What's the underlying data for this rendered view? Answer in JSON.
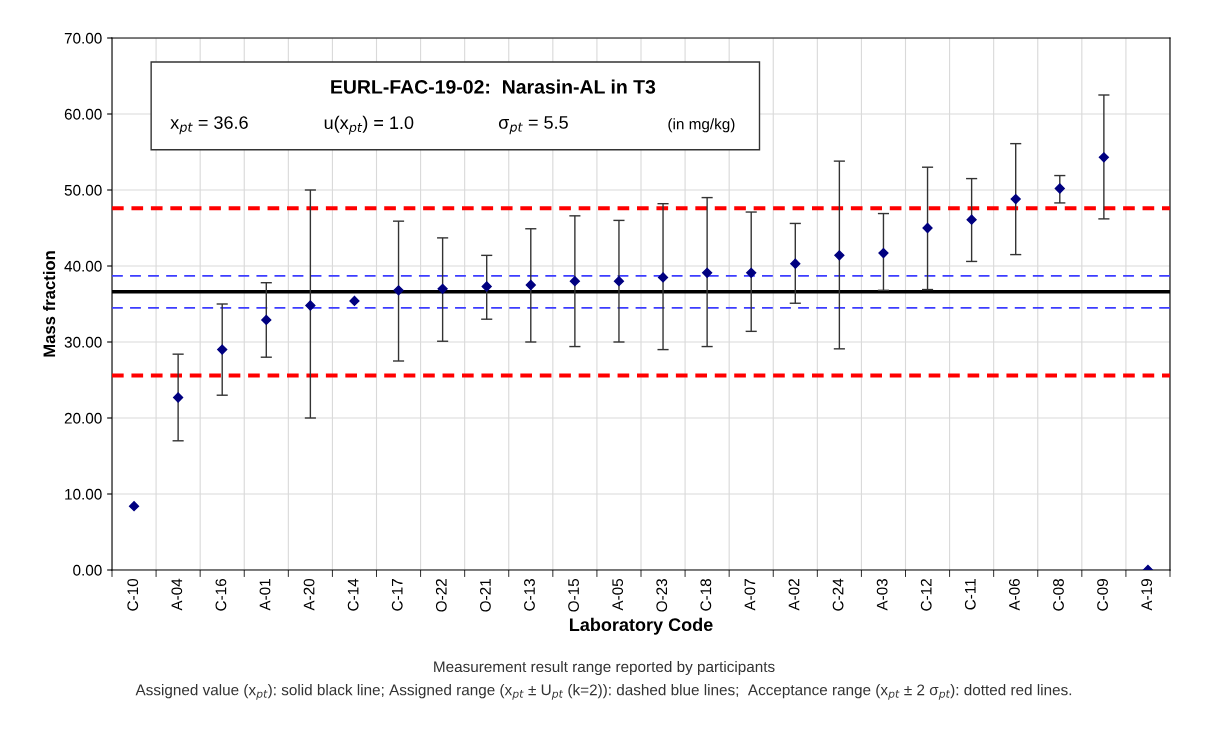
{
  "chart_data": {
    "type": "scatter",
    "title": "EURL-FAC-19-02:  Narasin-AL in T3",
    "xlabel": "Laboratory Code",
    "ylabel": "Mass fraction",
    "categories": [
      "C-10",
      "A-04",
      "C-16",
      "A-01",
      "A-20",
      "C-14",
      "C-17",
      "O-22",
      "O-21",
      "C-13",
      "O-15",
      "A-05",
      "O-23",
      "C-18",
      "A-07",
      "A-02",
      "C-24",
      "A-03",
      "C-12",
      "C-11",
      "A-06",
      "C-08",
      "C-09",
      "A-19"
    ],
    "series": [
      {
        "color": "#000080",
        "values": [
          8.4,
          22.7,
          29.0,
          32.9,
          34.8,
          35.4,
          36.8,
          37.0,
          37.3,
          37.5,
          38.0,
          38.0,
          38.5,
          39.1,
          39.1,
          40.3,
          41.4,
          41.7,
          45.0,
          46.1,
          48.8,
          50.2,
          54.3,
          0.0
        ],
        "errors": [
          null,
          [
            17.0,
            28.4
          ],
          [
            23.0,
            35.0
          ],
          [
            28.0,
            37.8
          ],
          [
            20.0,
            50.0
          ],
          null,
          [
            27.5,
            45.9
          ],
          [
            30.1,
            43.7
          ],
          [
            33.0,
            41.4
          ],
          [
            30.0,
            44.9
          ],
          [
            29.4,
            46.6
          ],
          [
            30.0,
            46.0
          ],
          [
            29.0,
            48.2
          ],
          [
            29.4,
            49.0
          ],
          [
            31.4,
            47.1
          ],
          [
            35.1,
            45.6
          ],
          [
            29.1,
            53.8
          ],
          [
            36.8,
            46.9
          ],
          [
            36.9,
            53.0
          ],
          [
            40.6,
            51.5
          ],
          [
            41.5,
            56.1
          ],
          [
            48.3,
            51.9
          ],
          [
            46.2,
            62.5
          ],
          null
        ]
      }
    ],
    "marker": "diamond",
    "ylim": [
      0,
      70
    ],
    "yticks": [
      {
        "value": 0,
        "label": "0.00"
      },
      {
        "value": 10,
        "label": "10.00"
      },
      {
        "value": 20,
        "label": "20.00"
      },
      {
        "value": 30,
        "label": "30.00"
      },
      {
        "value": 40,
        "label": "40.00"
      },
      {
        "value": 50,
        "label": "50.00"
      },
      {
        "value": 60,
        "label": "60.00"
      },
      {
        "value": 70,
        "label": "70.00"
      }
    ],
    "grid": true,
    "ref_lines": [
      {
        "axis": "y",
        "value": 36.6,
        "color": "#000000",
        "line_style": "solid"
      },
      {
        "axis": "y",
        "value": 34.5,
        "color": "#3d3dff",
        "line_style": "dashed"
      },
      {
        "axis": "y",
        "value": 38.7,
        "color": "#3d3dff",
        "line_style": "dashed"
      },
      {
        "axis": "y",
        "value": 25.6,
        "color": "#ff0000",
        "line_style": "dotted"
      },
      {
        "axis": "y",
        "value": 47.6,
        "color": "#ff0000",
        "line_style": "dotted"
      }
    ],
    "annotations": [
      "x$_{pt}$ = 36.6",
      "u(x$_{pt}$) = 1.0",
      "σ$_{pt}$ = 5.5",
      "(in mg/kg)",
      "Measurement result range reported by participants",
      "Assigned value (x$_{pt}$): solid black line; Assigned range (x$_{pt}$ ± U$_{pt}$ (k=2)): dashed blue lines;  Acceptance range (x$_{pt}$ ± 2 σ$_{pt}$): dotted red lines."
    ]
  }
}
